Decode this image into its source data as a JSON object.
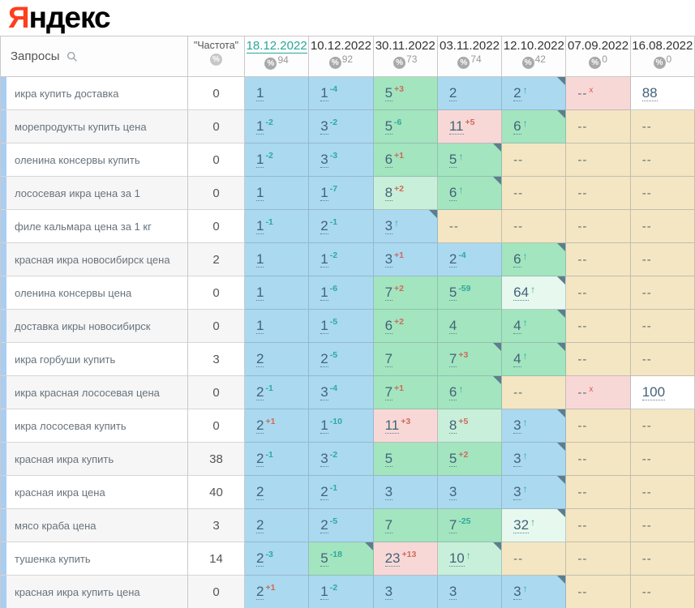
{
  "logo": {
    "prefix": "Я",
    "rest": "ндекс"
  },
  "colors": {
    "logo_red": "#fc3f1d",
    "accent_teal": "#2aa79b",
    "delta_up_teal": "#2fa99e",
    "delta_down_red": "#cf6a5d",
    "cell_blue": "#aad9f0",
    "cell_green": "#a2e5bf",
    "cell_lightgreen": "#c8efd9",
    "cell_palegreen": "#e7f8ee",
    "cell_pink": "#f8d8d6",
    "cell_beige": "#f4e6c2"
  },
  "icons": {
    "search": "search-icon",
    "percent_glyph": "%",
    "arrow_up_glyph": "↑"
  },
  "header": {
    "queries_label": "Запросы",
    "frequency_label": "\"Частота\"",
    "dates": [
      {
        "label": "18.12.2022",
        "count": "94",
        "selected": true
      },
      {
        "label": "10.12.2022",
        "count": "92",
        "selected": false
      },
      {
        "label": "30.11.2022",
        "count": "73",
        "selected": false
      },
      {
        "label": "03.11.2022",
        "count": "74",
        "selected": false
      },
      {
        "label": "12.10.2022",
        "count": "42",
        "selected": false
      },
      {
        "label": "07.09.2022",
        "count": "0",
        "selected": false
      },
      {
        "label": "16.08.2022",
        "count": "0",
        "selected": false
      }
    ]
  },
  "rows": [
    {
      "query": "икра купить доставка",
      "frequency": "0",
      "cells": [
        {
          "v": "1",
          "bg": "b"
        },
        {
          "v": "1",
          "d": "-4",
          "dk": "up",
          "bg": "b"
        },
        {
          "v": "5",
          "d": "+3",
          "dk": "down",
          "bg": "g"
        },
        {
          "v": "2",
          "bg": "b"
        },
        {
          "v": "2",
          "ar": true,
          "bg": "b",
          "fl": true
        },
        {
          "v": "--",
          "d": "x",
          "dk": "x",
          "bg": "p"
        },
        {
          "v": "88",
          "bg": "w"
        }
      ]
    },
    {
      "query": "морепродукты купить цена",
      "frequency": "0",
      "cells": [
        {
          "v": "1",
          "d": "-2",
          "dk": "up",
          "bg": "b"
        },
        {
          "v": "3",
          "d": "-2",
          "dk": "up",
          "bg": "b"
        },
        {
          "v": "5",
          "d": "-6",
          "dk": "up",
          "bg": "g"
        },
        {
          "v": "11",
          "d": "+5",
          "dk": "down",
          "bg": "p"
        },
        {
          "v": "6",
          "ar": true,
          "bg": "g",
          "fl": true
        },
        {
          "v": "--",
          "bg": "be"
        },
        {
          "v": "--",
          "bg": "be"
        }
      ]
    },
    {
      "query": "оленина консервы купить",
      "frequency": "0",
      "cells": [
        {
          "v": "1",
          "d": "-2",
          "dk": "up",
          "bg": "b"
        },
        {
          "v": "3",
          "d": "-3",
          "dk": "up",
          "bg": "b"
        },
        {
          "v": "6",
          "d": "+1",
          "dk": "down",
          "bg": "g"
        },
        {
          "v": "5",
          "ar": true,
          "bg": "g",
          "fl": true
        },
        {
          "v": "--",
          "bg": "be"
        },
        {
          "v": "--",
          "bg": "be"
        },
        {
          "v": "--",
          "bg": "be"
        }
      ]
    },
    {
      "query": "лососевая икра цена за 1",
      "frequency": "0",
      "cells": [
        {
          "v": "1",
          "bg": "b"
        },
        {
          "v": "1",
          "d": "-7",
          "dk": "up",
          "bg": "b"
        },
        {
          "v": "8",
          "d": "+2",
          "dk": "down",
          "bg": "lg"
        },
        {
          "v": "6",
          "ar": true,
          "bg": "g",
          "fl": true
        },
        {
          "v": "--",
          "bg": "be"
        },
        {
          "v": "--",
          "bg": "be"
        },
        {
          "v": "--",
          "bg": "be"
        }
      ]
    },
    {
      "query": "филе кальмара цена за 1 кг",
      "frequency": "0",
      "cells": [
        {
          "v": "1",
          "d": "-1",
          "dk": "up",
          "bg": "b"
        },
        {
          "v": "2",
          "d": "-1",
          "dk": "up",
          "bg": "b"
        },
        {
          "v": "3",
          "ar": true,
          "bg": "b",
          "fl": true
        },
        {
          "v": "--",
          "bg": "be"
        },
        {
          "v": "--",
          "bg": "be"
        },
        {
          "v": "--",
          "bg": "be"
        },
        {
          "v": "--",
          "bg": "be"
        }
      ]
    },
    {
      "query": "красная икра новосибирск цена",
      "frequency": "2",
      "cells": [
        {
          "v": "1",
          "bg": "b"
        },
        {
          "v": "1",
          "d": "-2",
          "dk": "up",
          "bg": "b"
        },
        {
          "v": "3",
          "d": "+1",
          "dk": "down",
          "bg": "b"
        },
        {
          "v": "2",
          "d": "-4",
          "dk": "up",
          "bg": "b"
        },
        {
          "v": "6",
          "ar": true,
          "bg": "g",
          "fl": true
        },
        {
          "v": "--",
          "bg": "be"
        },
        {
          "v": "--",
          "bg": "be"
        }
      ]
    },
    {
      "query": "оленина консервы цена",
      "frequency": "0",
      "cells": [
        {
          "v": "1",
          "bg": "b"
        },
        {
          "v": "1",
          "d": "-6",
          "dk": "up",
          "bg": "b"
        },
        {
          "v": "7",
          "d": "+2",
          "dk": "down",
          "bg": "g"
        },
        {
          "v": "5",
          "d": "-59",
          "dk": "up",
          "bg": "g"
        },
        {
          "v": "64",
          "ar": true,
          "bg": "pg",
          "fl": true
        },
        {
          "v": "--",
          "bg": "be"
        },
        {
          "v": "--",
          "bg": "be"
        }
      ]
    },
    {
      "query": "доставка икры новосибирск",
      "frequency": "0",
      "cells": [
        {
          "v": "1",
          "bg": "b"
        },
        {
          "v": "1",
          "d": "-5",
          "dk": "up",
          "bg": "b"
        },
        {
          "v": "6",
          "d": "+2",
          "dk": "down",
          "bg": "g"
        },
        {
          "v": "4",
          "bg": "g"
        },
        {
          "v": "4",
          "ar": true,
          "bg": "g",
          "fl": true
        },
        {
          "v": "--",
          "bg": "be"
        },
        {
          "v": "--",
          "bg": "be"
        }
      ]
    },
    {
      "query": "икра горбуши купить",
      "frequency": "3",
      "cells": [
        {
          "v": "2",
          "bg": "b"
        },
        {
          "v": "2",
          "d": "-5",
          "dk": "up",
          "bg": "b"
        },
        {
          "v": "7",
          "bg": "g"
        },
        {
          "v": "7",
          "d": "+3",
          "dk": "down",
          "bg": "g",
          "fl": true
        },
        {
          "v": "4",
          "ar": true,
          "bg": "g",
          "fl": true
        },
        {
          "v": "--",
          "bg": "be"
        },
        {
          "v": "--",
          "bg": "be"
        }
      ]
    },
    {
      "query": "икра красная лососевая цена",
      "frequency": "0",
      "cells": [
        {
          "v": "2",
          "d": "-1",
          "dk": "up",
          "bg": "b"
        },
        {
          "v": "3",
          "d": "-4",
          "dk": "up",
          "bg": "b"
        },
        {
          "v": "7",
          "d": "+1",
          "dk": "down",
          "bg": "g"
        },
        {
          "v": "6",
          "ar": true,
          "bg": "g",
          "fl": true
        },
        {
          "v": "--",
          "bg": "be"
        },
        {
          "v": "--",
          "d": "x",
          "dk": "x",
          "bg": "p"
        },
        {
          "v": "100",
          "bg": "w"
        }
      ]
    },
    {
      "query": "икра лососевая купить",
      "frequency": "0",
      "cells": [
        {
          "v": "2",
          "d": "+1",
          "dk": "down",
          "bg": "b"
        },
        {
          "v": "1",
          "d": "-10",
          "dk": "up",
          "bg": "b"
        },
        {
          "v": "11",
          "d": "+3",
          "dk": "down",
          "bg": "p"
        },
        {
          "v": "8",
          "d": "+5",
          "dk": "down",
          "bg": "lg"
        },
        {
          "v": "3",
          "ar": true,
          "bg": "b",
          "fl": true
        },
        {
          "v": "--",
          "bg": "be"
        },
        {
          "v": "--",
          "bg": "be"
        }
      ]
    },
    {
      "query": "красная икра купить",
      "frequency": "38",
      "cells": [
        {
          "v": "2",
          "d": "-1",
          "dk": "up",
          "bg": "b"
        },
        {
          "v": "3",
          "d": "-2",
          "dk": "up",
          "bg": "b"
        },
        {
          "v": "5",
          "bg": "g"
        },
        {
          "v": "5",
          "d": "+2",
          "dk": "down",
          "bg": "g"
        },
        {
          "v": "3",
          "ar": true,
          "bg": "b",
          "fl": true
        },
        {
          "v": "--",
          "bg": "be"
        },
        {
          "v": "--",
          "bg": "be"
        }
      ]
    },
    {
      "query": "красная икра цена",
      "frequency": "40",
      "cells": [
        {
          "v": "2",
          "bg": "b"
        },
        {
          "v": "2",
          "d": "-1",
          "dk": "up",
          "bg": "b"
        },
        {
          "v": "3",
          "bg": "b"
        },
        {
          "v": "3",
          "bg": "b"
        },
        {
          "v": "3",
          "ar": true,
          "bg": "b",
          "fl": true
        },
        {
          "v": "--",
          "bg": "be"
        },
        {
          "v": "--",
          "bg": "be"
        }
      ]
    },
    {
      "query": "мясо краба цена",
      "frequency": "3",
      "cells": [
        {
          "v": "2",
          "bg": "b"
        },
        {
          "v": "2",
          "d": "-5",
          "dk": "up",
          "bg": "b"
        },
        {
          "v": "7",
          "bg": "g"
        },
        {
          "v": "7",
          "d": "-25",
          "dk": "up",
          "bg": "g"
        },
        {
          "v": "32",
          "ar": true,
          "bg": "pg",
          "fl": true
        },
        {
          "v": "--",
          "bg": "be"
        },
        {
          "v": "--",
          "bg": "be"
        }
      ]
    },
    {
      "query": "тушенка купить",
      "frequency": "14",
      "cells": [
        {
          "v": "2",
          "d": "-3",
          "dk": "up",
          "bg": "b"
        },
        {
          "v": "5",
          "d": "-18",
          "dk": "up",
          "bg": "g",
          "fl": true
        },
        {
          "v": "23",
          "d": "+13",
          "dk": "down",
          "bg": "p"
        },
        {
          "v": "10",
          "ar": true,
          "bg": "lg",
          "fl": true
        },
        {
          "v": "--",
          "bg": "be"
        },
        {
          "v": "--",
          "bg": "be"
        },
        {
          "v": "--",
          "bg": "be"
        }
      ]
    },
    {
      "query": "красная икра купить цена",
      "frequency": "0",
      "cells": [
        {
          "v": "2",
          "d": "+1",
          "dk": "down",
          "bg": "b"
        },
        {
          "v": "1",
          "d": "-2",
          "dk": "up",
          "bg": "b"
        },
        {
          "v": "3",
          "bg": "b"
        },
        {
          "v": "3",
          "bg": "b"
        },
        {
          "v": "3",
          "ar": true,
          "bg": "b",
          "fl": true
        },
        {
          "v": "--",
          "bg": "be"
        },
        {
          "v": "--",
          "bg": "be"
        }
      ]
    }
  ]
}
